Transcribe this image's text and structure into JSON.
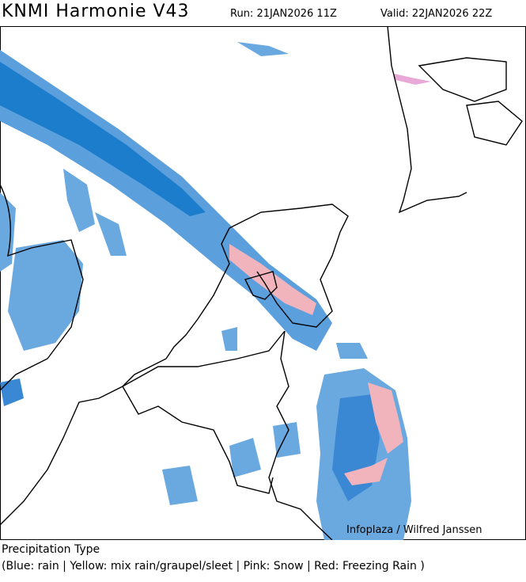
{
  "header": {
    "title": "KNMI Harmonie V43",
    "run": "Run: 21JAN2026 11Z",
    "valid": "Valid: 22JAN2026 22Z"
  },
  "map": {
    "credit": "Infoplaza / Wilfred Janssen"
  },
  "footer": {
    "legend_title": "Precipitation Type",
    "legend_text": "(Blue: rain | Yellow: mix rain/graupel/sleet | Pink: Snow | Red: Freezing Rain )"
  }
}
